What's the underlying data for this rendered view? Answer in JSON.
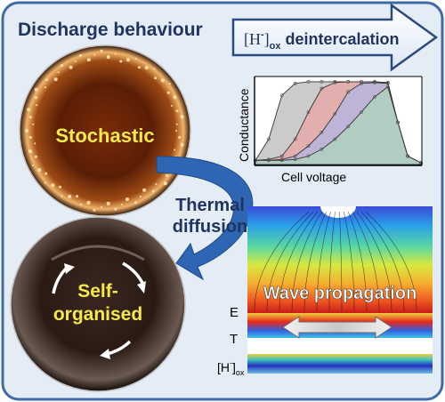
{
  "title": "Discharge behaviour",
  "arrow_banner": {
    "prefix": "[H",
    "superscript": "-",
    "bracket": "]",
    "subscript": "ox",
    "suffix": " deintercalation"
  },
  "stochastic_label": "Stochastic",
  "self_organised_label": [
    "Self-",
    "organised"
  ],
  "transition_label": [
    "Thermal",
    "diffusion"
  ],
  "chart": {
    "xlabel": "Cell voltage",
    "ylabel": "Conductance"
  },
  "wave_label": "Wave propagation",
  "field_labels": {
    "e": "E",
    "t": "T",
    "h_prefix": "[H",
    "h_sup": "-",
    "h_bracket": "]",
    "h_sub": "ox"
  },
  "colors": {
    "border": "#3f6ba8",
    "background": "#e4ecf6",
    "arrow_blue": "#2f66b3",
    "label_yellow": "#f6e94a",
    "curve_grey": "#a8a8a8",
    "curve_red": "#f19c9c",
    "curve_blue": "#a6b8f0",
    "curve_green": "#a8dcb0"
  },
  "chart_data": {
    "type": "area",
    "xlabel": "Cell voltage",
    "ylabel": "Conductance",
    "grid": false,
    "legend": "none",
    "x": [
      0,
      0.08,
      0.16,
      0.24,
      0.32,
      0.4,
      0.48,
      0.56,
      0.64,
      0.72,
      0.8,
      0.86,
      0.92,
      1.0
    ],
    "series": [
      {
        "values": [
          0.05,
          0.3,
          0.82,
          0.96,
          0.98,
          0.98,
          0.98,
          0.98,
          0.98,
          0.98,
          0.97,
          0.5,
          0.1,
          0.02
        ],
        "color": "#a8a8a8"
      },
      {
        "values": [
          0.05,
          0.06,
          0.1,
          0.3,
          0.62,
          0.9,
          0.97,
          0.98,
          0.98,
          0.98,
          0.97,
          0.5,
          0.1,
          0.02
        ],
        "color": "#f19c9c"
      },
      {
        "values": [
          0.05,
          0.05,
          0.06,
          0.1,
          0.22,
          0.38,
          0.6,
          0.86,
          0.96,
          0.97,
          0.96,
          0.5,
          0.1,
          0.02
        ],
        "color": "#a6b8f0"
      },
      {
        "values": [
          0.05,
          0.05,
          0.05,
          0.06,
          0.1,
          0.18,
          0.3,
          0.45,
          0.62,
          0.8,
          0.92,
          0.5,
          0.1,
          0.02
        ],
        "color": "#a8dcb0"
      }
    ]
  }
}
